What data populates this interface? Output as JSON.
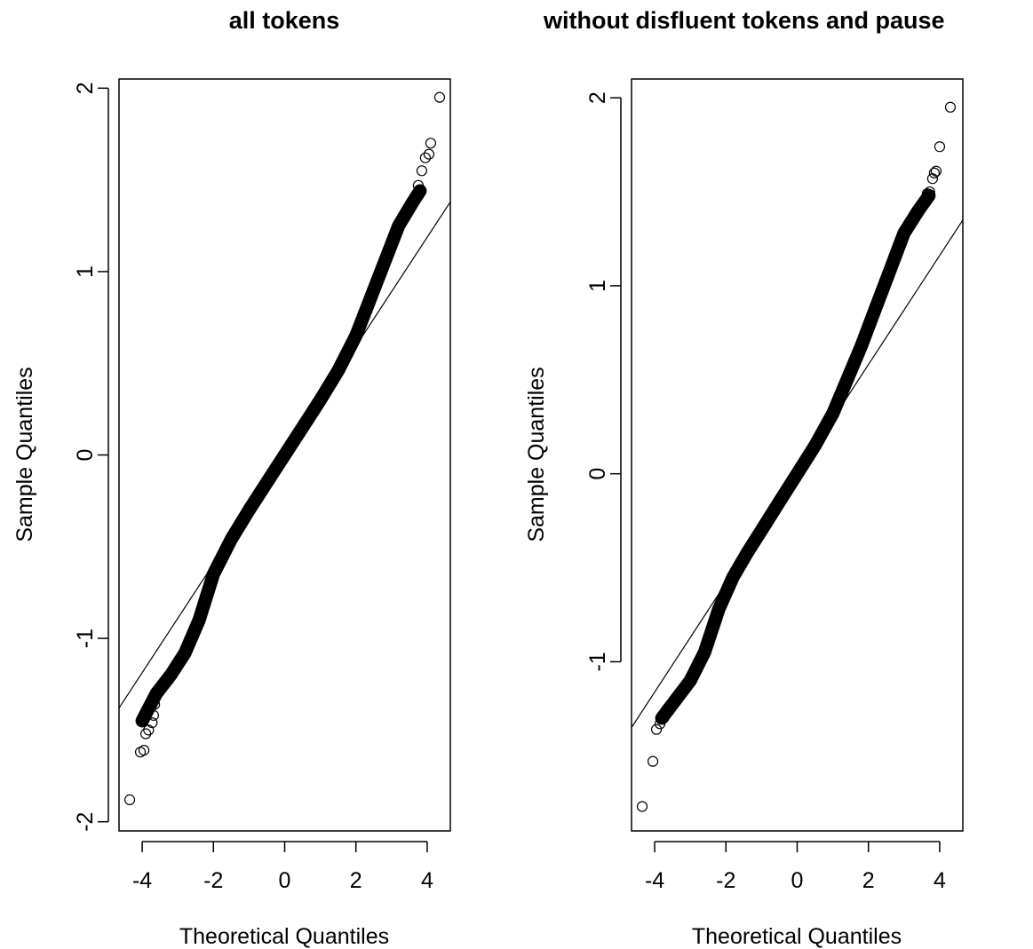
{
  "chart_data": [
    {
      "type": "scatter",
      "title": "all tokens",
      "xlabel": "Theoretical Quantiles",
      "ylabel": "Sample Quantiles",
      "xlim": [
        -4.65,
        4.65
      ],
      "ylim": [
        -2.05,
        2.05
      ],
      "xticks": [
        -4,
        -2,
        0,
        2,
        4
      ],
      "xtick_labels": [
        "-4",
        "-2",
        "0",
        "2",
        "4"
      ],
      "yticks": [
        -2,
        -1,
        0,
        1,
        2
      ],
      "ytick_labels": [
        "-2",
        "-1",
        "0",
        "1",
        "2"
      ],
      "grid": false,
      "reference_line": {
        "x": [
          -4.65,
          4.65
        ],
        "y": [
          -1.38,
          1.38
        ]
      },
      "curve": {
        "x": [
          -4.0,
          -3.6,
          -3.2,
          -2.8,
          -2.4,
          -2.0,
          -1.5,
          -1.0,
          -0.5,
          0.0,
          0.5,
          1.0,
          1.5,
          2.0,
          2.4,
          2.8,
          3.2,
          3.6,
          3.8
        ],
        "y": [
          -1.45,
          -1.3,
          -1.2,
          -1.08,
          -0.9,
          -0.65,
          -0.46,
          -0.3,
          -0.15,
          0.0,
          0.15,
          0.3,
          0.46,
          0.65,
          0.85,
          1.05,
          1.25,
          1.38,
          1.44
        ]
      },
      "outliers": {
        "x": [
          -4.35,
          -4.05,
          -3.95,
          -3.9,
          -3.82,
          -3.72,
          -3.68,
          -3.65,
          3.65,
          3.75,
          3.85,
          3.95,
          4.05,
          4.1,
          4.35
        ],
        "y": [
          -1.88,
          -1.62,
          -1.61,
          -1.52,
          -1.5,
          -1.46,
          -1.42,
          -1.36,
          1.4,
          1.47,
          1.55,
          1.62,
          1.64,
          1.7,
          1.95
        ]
      }
    },
    {
      "type": "scatter",
      "title": "without disfluent tokens and pause",
      "xlabel": "Theoretical Quantiles",
      "ylabel": "Sample Quantiles",
      "xlim": [
        -4.65,
        4.65
      ],
      "ylim": [
        -1.9,
        2.1
      ],
      "xticks": [
        -4,
        -2,
        0,
        2,
        4
      ],
      "xtick_labels": [
        "-4",
        "-2",
        "0",
        "2",
        "4"
      ],
      "yticks": [
        -1,
        0,
        1,
        2
      ],
      "ytick_labels": [
        "-1",
        "0",
        "1",
        "2"
      ],
      "grid": false,
      "reference_line": {
        "x": [
          -4.65,
          4.65
        ],
        "y": [
          -1.35,
          1.35
        ]
      },
      "curve": {
        "x": [
          -3.8,
          -3.4,
          -3.0,
          -2.6,
          -2.2,
          -1.8,
          -1.4,
          -1.0,
          -0.5,
          0.0,
          0.5,
          1.0,
          1.4,
          1.8,
          2.2,
          2.6,
          3.0,
          3.4,
          3.7
        ],
        "y": [
          -1.3,
          -1.2,
          -1.1,
          -0.95,
          -0.72,
          -0.55,
          -0.42,
          -0.3,
          -0.15,
          0.0,
          0.15,
          0.32,
          0.5,
          0.68,
          0.88,
          1.08,
          1.28,
          1.4,
          1.48
        ]
      },
      "outliers": {
        "x": [
          -4.35,
          -4.05,
          -3.95,
          -3.85,
          -3.75,
          -3.65,
          3.65,
          3.72,
          3.8,
          3.85,
          3.9,
          4.0,
          4.3
        ],
        "y": [
          -1.77,
          -1.53,
          -1.36,
          -1.33,
          -1.3,
          -1.25,
          1.49,
          1.5,
          1.57,
          1.6,
          1.61,
          1.74,
          1.95
        ]
      }
    }
  ]
}
